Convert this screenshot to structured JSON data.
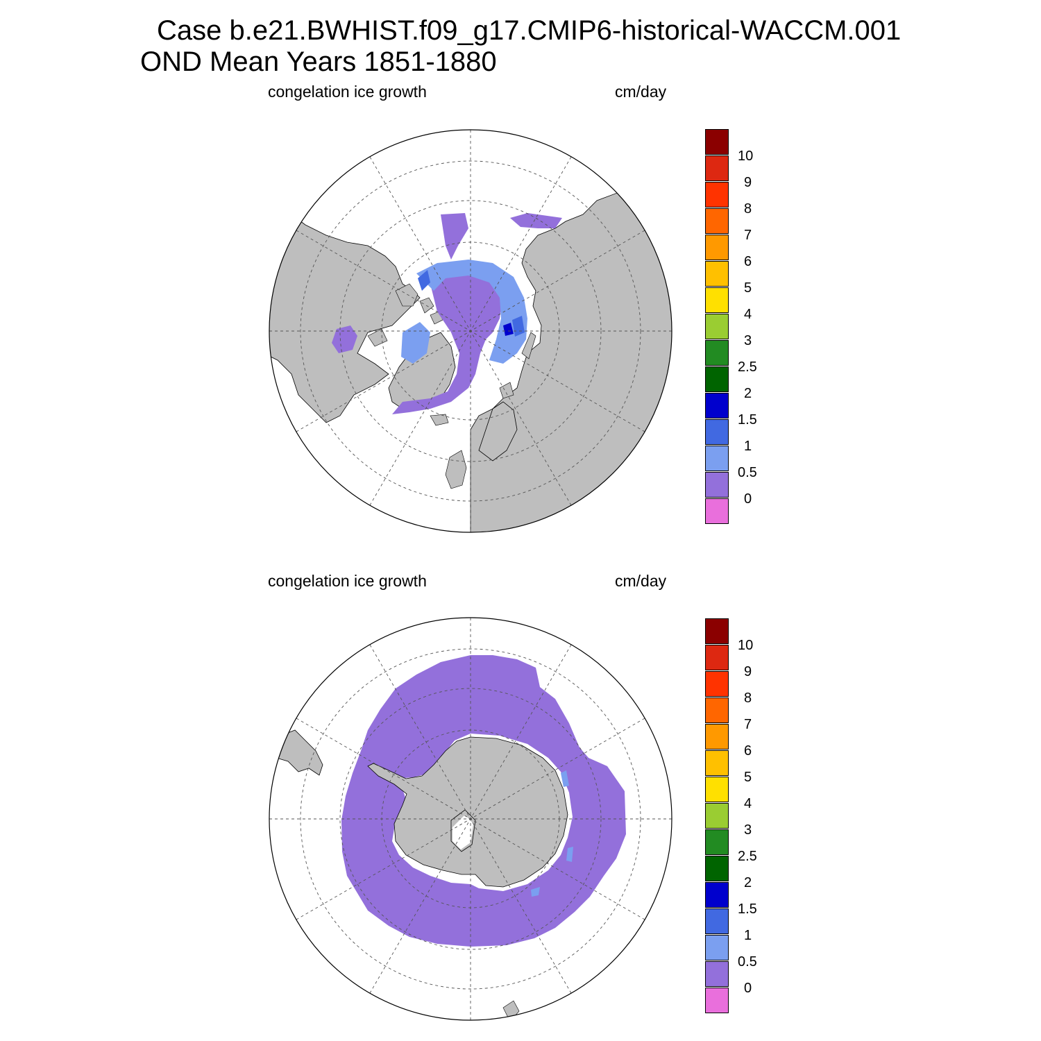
{
  "title": {
    "line1": "Case b.e21.BWHIST.f09_g17.CMIP6-historical-WACCM.001",
    "line2": "OND Mean   Years 1851-1880"
  },
  "colors": {
    "land": "#bebebe",
    "ocean": "#ffffff",
    "grid": "#555555",
    "ice_0_05": "#9370db",
    "ice_05_1": "#7b9ff0",
    "ice_1_15": "#4169e1",
    "ice_15_2": "#0000cd"
  },
  "colorbar": {
    "colors": [
      "#e96fdc",
      "#9370db",
      "#7b9ff0",
      "#4169e1",
      "#0000cd",
      "#006400",
      "#228b22",
      "#9acd32",
      "#ffe000",
      "#ffc000",
      "#ff9900",
      "#ff6600",
      "#ff3300",
      "#dd2811",
      "#8b0000"
    ],
    "labels": [
      "0",
      "0.5",
      "1",
      "1.5",
      "2",
      "2.5",
      "3",
      "4",
      "5",
      "6",
      "7",
      "8",
      "9",
      "10"
    ]
  },
  "panels": [
    {
      "id": "north",
      "variable_label": "congelation ice growth",
      "units_label": "cm/day",
      "hemisphere": "Northern Hemisphere (polar stereographic)"
    },
    {
      "id": "south",
      "variable_label": "congelation ice growth",
      "units_label": "cm/day",
      "hemisphere": "Southern Hemisphere (polar stereographic)"
    }
  ]
}
